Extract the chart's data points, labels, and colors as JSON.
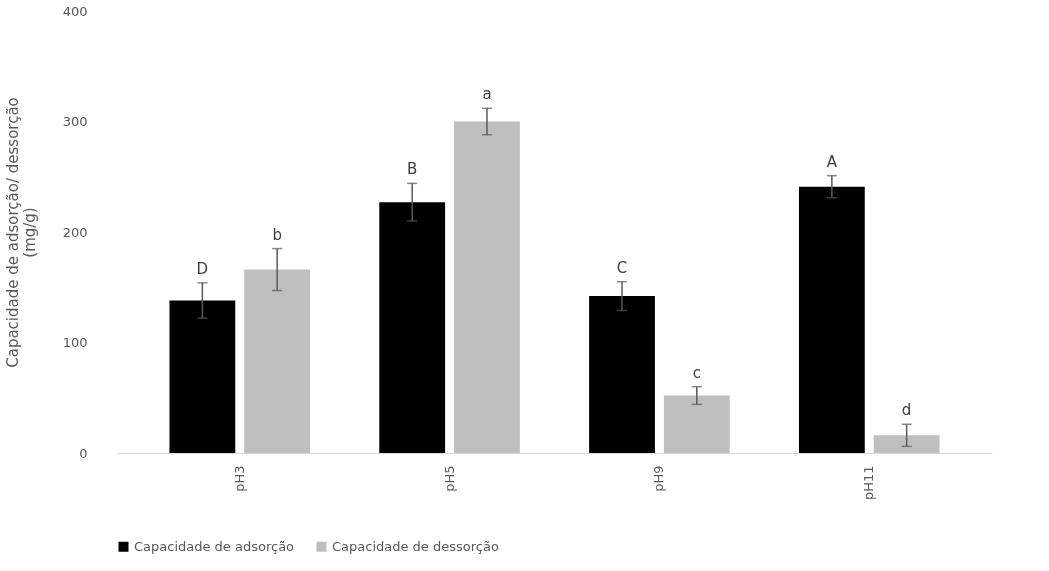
{
  "chart_data": {
    "type": "bar",
    "ylabel": "Capacidade de adsorção/ dessorção\n(mg/g)",
    "categories": [
      "pH3",
      "pH5",
      "pH9",
      "pH11"
    ],
    "series": [
      {
        "name": "Capacidade de adsorção",
        "color": "#000000",
        "values": [
          138,
          227,
          142,
          241
        ],
        "errors": [
          16,
          17,
          13,
          10
        ],
        "value_labels": [
          "D",
          "B",
          "C",
          "A"
        ]
      },
      {
        "name": "Capacidade de dessorção",
        "color": "#bfbfbf",
        "values": [
          166,
          300,
          52,
          16
        ],
        "errors": [
          19,
          12,
          8,
          10
        ],
        "value_labels": [
          "b",
          "a",
          "c",
          "d"
        ]
      }
    ],
    "ylim": [
      0,
      400
    ],
    "yticks": [
      0,
      100,
      200,
      300,
      400
    ],
    "grid": false,
    "legend": "bottom"
  }
}
